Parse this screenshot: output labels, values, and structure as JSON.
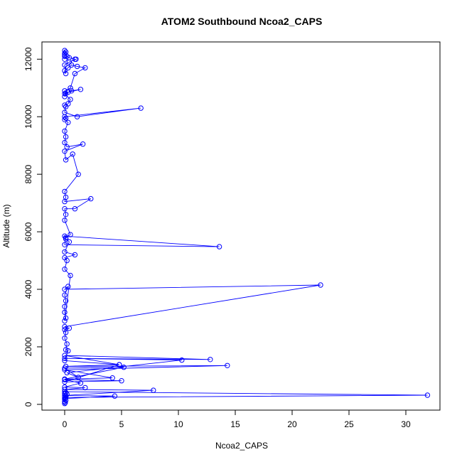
{
  "chart_data": {
    "type": "line",
    "title": "ATOM2 Southbound Ncoa2_CAPS",
    "xlabel": "Ncoa2_CAPS",
    "ylabel": "Altitude (m)",
    "xlim": [
      -2,
      33
    ],
    "ylim": [
      -200,
      12600
    ],
    "xticks": [
      0,
      5,
      10,
      15,
      20,
      25,
      30
    ],
    "yticks": [
      0,
      2000,
      4000,
      6000,
      8000,
      10000,
      12000
    ],
    "grid": false,
    "series_color": "#0000ff",
    "series": [
      {
        "x": [
          0,
          0.05,
          0,
          0.1,
          0,
          0.05,
          0,
          0.1,
          0.2,
          0,
          0.1,
          0,
          31.9,
          0.1,
          0,
          4.4,
          0,
          7.8,
          0,
          1.8,
          0,
          1.4,
          0,
          5,
          0,
          4.8,
          0.1,
          14.3,
          0,
          4.2,
          0,
          5.2,
          0,
          1.2,
          0.2,
          10.3,
          0,
          12.8,
          0,
          4.8,
          0,
          0.3,
          0.1,
          0.2,
          0,
          0.1,
          0,
          0.4,
          0,
          22.5,
          0,
          0.3,
          0,
          0.1,
          0,
          0,
          0.1,
          0,
          0.5,
          0,
          0.2,
          0,
          0.9,
          0,
          0.4,
          0.1,
          0,
          13.6,
          0,
          0.1,
          0.5,
          0,
          0.1,
          0,
          0.9,
          2.3,
          0,
          0.1,
          0,
          1.2,
          0.7,
          0.1,
          0,
          1.6,
          0.2,
          0,
          0.1,
          0,
          0.3,
          0,
          0.1,
          0,
          6.7,
          1.1,
          0,
          0.1,
          0,
          0.3,
          0.5,
          0,
          0.6,
          1.4,
          0.3,
          0,
          0.1,
          0,
          0.5,
          0.9,
          1.8,
          1.1,
          0.6,
          0.3,
          0,
          0.1,
          0,
          0.4,
          1,
          0.9,
          0.4,
          0.2,
          0,
          0.1,
          0,
          0,
          0,
          0
        ],
        "y": [
          30,
          60,
          100,
          140,
          180,
          220,
          260,
          300,
          350,
          380,
          410,
          440,
          320,
          240,
          200,
          290,
          310,
          490,
          520,
          580,
          600,
          740,
          860,
          820,
          780,
          1380,
          1320,
          1350,
          1200,
          920,
          880,
          1290,
          1260,
          940,
          1100,
          1540,
          1600,
          1560,
          1700,
          1380,
          1520,
          1860,
          1900,
          2100,
          2300,
          2500,
          2600,
          2650,
          2700,
          4150,
          4000,
          4100,
          3800,
          3600,
          3400,
          3200,
          3000,
          2900,
          4480,
          4700,
          5000,
          5100,
          5200,
          5300,
          5650,
          5750,
          5850,
          5480,
          5550,
          5800,
          5900,
          6400,
          6600,
          6800,
          6800,
          7150,
          7050,
          7200,
          7400,
          8000,
          8700,
          8500,
          8800,
          9050,
          8950,
          9100,
          9300,
          9500,
          9800,
          9900,
          9950,
          10000,
          10300,
          10000,
          10150,
          10350,
          10400,
          10450,
          10600,
          10800,
          10900,
          10950,
          10850,
          10700,
          10800,
          10900,
          11000,
          11500,
          11700,
          11750,
          11800,
          11700,
          11600,
          11500,
          11800,
          11900,
          12000,
          12000,
          12050,
          12100,
          12150,
          12250,
          12300,
          12200,
          12100,
          12000
        ]
      }
    ]
  }
}
